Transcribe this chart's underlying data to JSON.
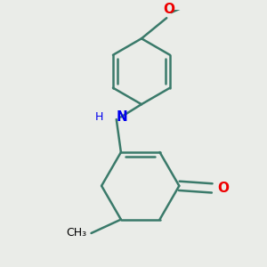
{
  "bg_color": "#eaece8",
  "bond_color": "#3a7a6a",
  "bond_width": 1.8,
  "N_color": "#0000ee",
  "O_color": "#ee0000",
  "text_color": "#000000",
  "figsize": [
    3.0,
    3.0
  ],
  "dpi": 100,
  "xlim": [
    -2.5,
    2.5
  ],
  "ylim": [
    -2.8,
    2.8
  ]
}
